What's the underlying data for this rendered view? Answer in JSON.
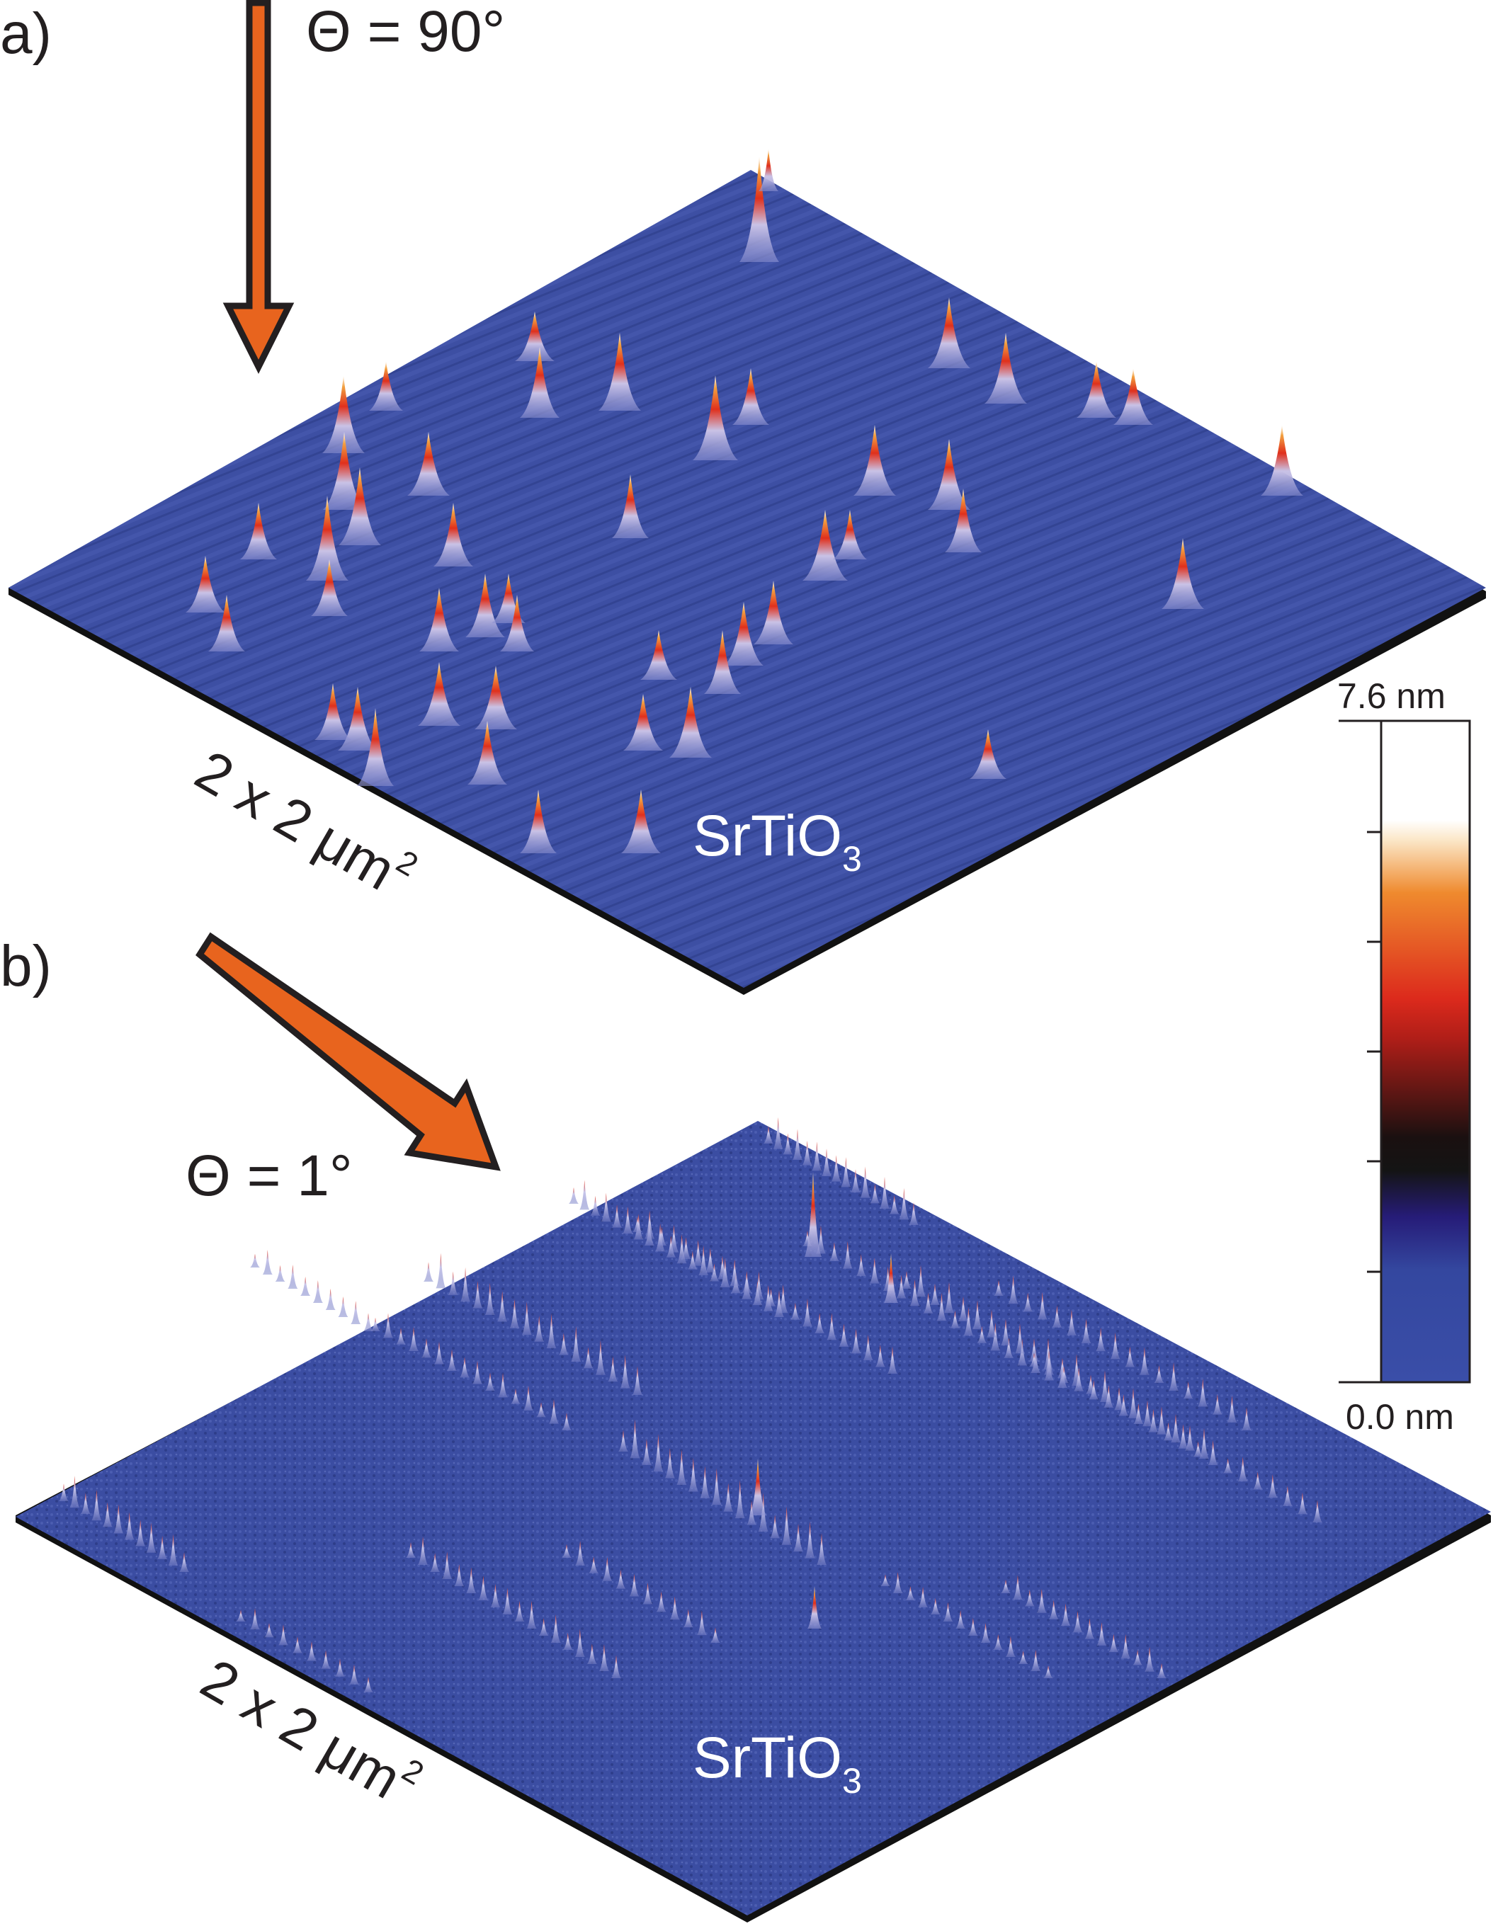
{
  "panel_a": {
    "label": "a)",
    "angle": "Θ = 90°",
    "area": "2 x 2 μm",
    "area_exp": "2",
    "material": "SrTiO",
    "material_sub": "3"
  },
  "panel_b": {
    "label": "b)",
    "angle": "Θ = 1°",
    "area": "2 x 2 μm",
    "area_exp": "2",
    "material": "SrTiO",
    "material_sub": "3"
  },
  "colorbar": {
    "max_label": "7.6 nm",
    "min_label": "0.0 nm",
    "max_value": 7.6,
    "min_value": 0.0,
    "unit": "nm",
    "stops": [
      "#3a4ea8",
      "#2c2a8a",
      "#141414",
      "#d82a1a",
      "#ef8a2e",
      "#ffffff"
    ]
  },
  "colors": {
    "arrow_fill": "#e8641e",
    "arrow_stroke": "#231f20",
    "surface": "#3d4fa3",
    "surface_dark": "#2f3f8c"
  }
}
